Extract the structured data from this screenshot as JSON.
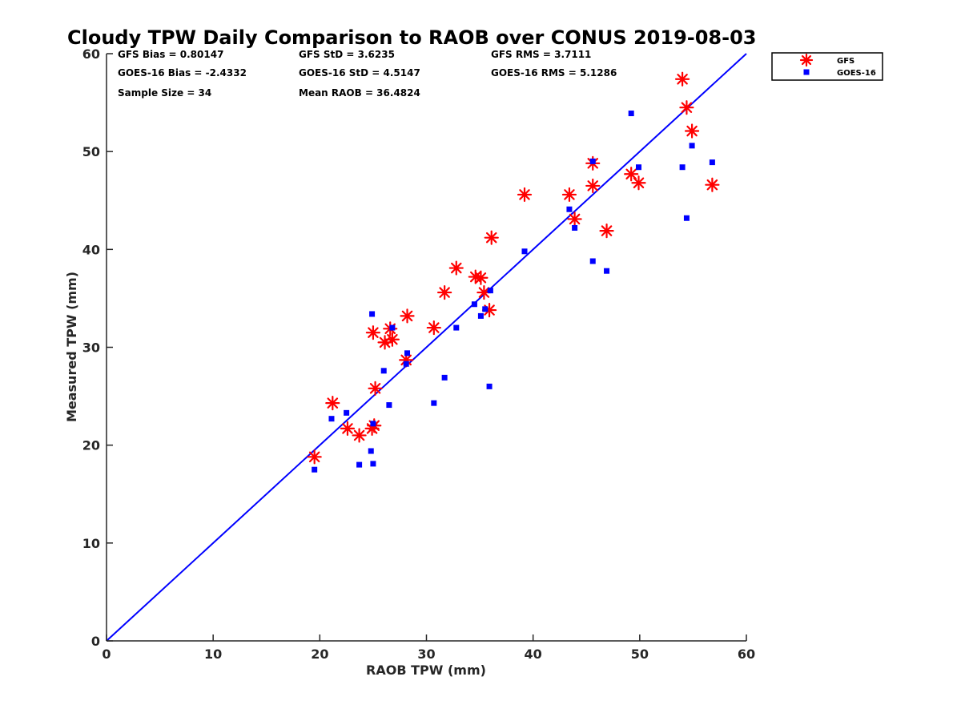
{
  "colors": {
    "gfs": "#ff0000",
    "goes": "#0000ff",
    "diag": "#0000ff",
    "axis": "#262626"
  },
  "stats": {
    "gfs_bias": "GFS Bias = 0.80147",
    "gfs_std": "GFS StD = 3.6235",
    "gfs_rms": "GFS RMS = 3.7111",
    "goes_bias": "GOES-16 Bias = -2.4332",
    "goes_std": "GOES-16 StD = 4.5147",
    "goes_rms": "GOES-16 RMS = 5.1286",
    "sample_size": "Sample Size = 34",
    "mean_raob": "Mean RAOB = 36.4824"
  },
  "chart_data": {
    "type": "scatter",
    "title": "Cloudy TPW Daily Comparison to RAOB over CONUS 2019-08-03",
    "xlabel": "RAOB TPW (mm)",
    "ylabel": "Measured TPW (mm)",
    "xlim": [
      0,
      60
    ],
    "ylim": [
      0,
      60
    ],
    "xticks": [
      "0",
      "10",
      "20",
      "30",
      "40",
      "50",
      "60"
    ],
    "yticks": [
      "0",
      "10",
      "20",
      "30",
      "40",
      "50",
      "60"
    ],
    "grid": false,
    "legend_position": "outside top-right",
    "reference_line": "y = x",
    "series": [
      {
        "name": "GFS",
        "marker": "asterisk",
        "color": "#ff0000",
        "points": [
          [
            19.5,
            18.8
          ],
          [
            21.2,
            24.3
          ],
          [
            22.6,
            21.7
          ],
          [
            23.7,
            21.0
          ],
          [
            24.9,
            21.7
          ],
          [
            25.1,
            22.0
          ],
          [
            25.0,
            31.5
          ],
          [
            25.2,
            25.8
          ],
          [
            26.1,
            30.5
          ],
          [
            26.6,
            31.9
          ],
          [
            26.8,
            30.8
          ],
          [
            28.1,
            28.7
          ],
          [
            28.2,
            33.2
          ],
          [
            30.7,
            32.0
          ],
          [
            31.7,
            35.6
          ],
          [
            32.8,
            38.1
          ],
          [
            34.6,
            37.2
          ],
          [
            35.1,
            37.1
          ],
          [
            35.4,
            35.6
          ],
          [
            35.9,
            33.8
          ],
          [
            36.1,
            41.2
          ],
          [
            39.2,
            45.6
          ],
          [
            43.4,
            45.6
          ],
          [
            43.9,
            43.1
          ],
          [
            45.6,
            48.8
          ],
          [
            45.6,
            46.5
          ],
          [
            46.9,
            41.9
          ],
          [
            49.2,
            47.7
          ],
          [
            49.9,
            46.8
          ],
          [
            54.0,
            57.4
          ],
          [
            54.4,
            54.5
          ],
          [
            54.9,
            52.1
          ],
          [
            56.8,
            46.6
          ]
        ]
      },
      {
        "name": "GOES-16",
        "marker": "square",
        "color": "#0000ff",
        "points": [
          [
            19.5,
            17.5
          ],
          [
            21.1,
            22.7
          ],
          [
            22.5,
            23.3
          ],
          [
            23.7,
            18.0
          ],
          [
            24.8,
            19.4
          ],
          [
            25.0,
            18.1
          ],
          [
            25.0,
            22.2
          ],
          [
            24.9,
            33.4
          ],
          [
            26.0,
            27.6
          ],
          [
            26.5,
            24.1
          ],
          [
            26.8,
            32.0
          ],
          [
            28.1,
            28.3
          ],
          [
            28.2,
            29.4
          ],
          [
            30.7,
            24.3
          ],
          [
            31.7,
            26.9
          ],
          [
            32.8,
            32.0
          ],
          [
            34.5,
            34.4
          ],
          [
            35.1,
            33.2
          ],
          [
            35.5,
            33.9
          ],
          [
            36.0,
            35.8
          ],
          [
            35.9,
            26.0
          ],
          [
            39.2,
            39.8
          ],
          [
            43.4,
            44.1
          ],
          [
            43.9,
            42.2
          ],
          [
            45.6,
            38.8
          ],
          [
            45.6,
            49.0
          ],
          [
            46.9,
            37.8
          ],
          [
            49.2,
            53.9
          ],
          [
            49.9,
            48.4
          ],
          [
            54.0,
            48.4
          ],
          [
            54.4,
            43.2
          ],
          [
            54.9,
            50.6
          ],
          [
            56.8,
            48.9
          ]
        ]
      }
    ]
  }
}
